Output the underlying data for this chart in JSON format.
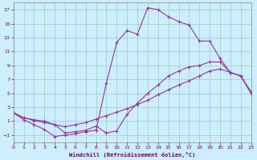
{
  "background_color": "#cceeff",
  "plot_bg_color": "#cceeff",
  "grid_color": "#99ccbb",
  "line_color": "#993399",
  "xlabel": "Windchill (Refroidissement éolien,°C)",
  "xlabel_color": "#660066",
  "tick_color": "#660066",
  "xlim": [
    0,
    23
  ],
  "ylim": [
    -2,
    18
  ],
  "xticks": [
    0,
    1,
    2,
    3,
    4,
    5,
    6,
    7,
    8,
    9,
    10,
    11,
    12,
    13,
    14,
    15,
    16,
    17,
    18,
    19,
    20,
    21,
    22,
    23
  ],
  "yticks": [
    -1,
    1,
    3,
    5,
    7,
    9,
    11,
    13,
    15,
    17
  ],
  "line1_x": [
    0,
    1,
    2,
    3,
    4,
    5,
    6,
    7,
    8,
    9,
    10,
    11,
    12,
    13,
    14,
    15,
    16,
    17,
    18,
    19,
    20,
    21,
    22,
    23
  ],
  "line1_y": [
    2.2,
    1.5,
    1.1,
    0.8,
    0.5,
    -0.7,
    -0.5,
    -0.3,
    0.3,
    -0.7,
    -0.4,
    2.0,
    3.6,
    5.0,
    6.2,
    7.5,
    8.2,
    8.8,
    9.0,
    9.5,
    9.5,
    8.0,
    7.5,
    5.2
  ],
  "line2_x": [
    0,
    1,
    2,
    3,
    4,
    5,
    6,
    7,
    8,
    9,
    10,
    11,
    12,
    13,
    14,
    15,
    16,
    17,
    18,
    19,
    20,
    21,
    22,
    23
  ],
  "line2_y": [
    2.2,
    1.5,
    1.2,
    1.0,
    0.5,
    0.2,
    0.5,
    0.8,
    1.3,
    1.8,
    2.3,
    2.8,
    3.4,
    4.0,
    4.8,
    5.5,
    6.2,
    6.8,
    7.5,
    8.2,
    8.5,
    8.0,
    7.5,
    5.2
  ],
  "line3_x": [
    0,
    1,
    2,
    3,
    4,
    5,
    6,
    7,
    8,
    9,
    10,
    11,
    12,
    13,
    14,
    15,
    16,
    17,
    18,
    19,
    20,
    21,
    22,
    23
  ],
  "line3_y": [
    2.2,
    1.2,
    0.5,
    -0.2,
    -1.2,
    -1.0,
    -0.8,
    -0.5,
    -0.3,
    6.5,
    12.3,
    14.0,
    13.5,
    17.3,
    17.0,
    16.0,
    15.3,
    14.8,
    12.5,
    12.5,
    10.0,
    8.0,
    7.5,
    5.0
  ]
}
